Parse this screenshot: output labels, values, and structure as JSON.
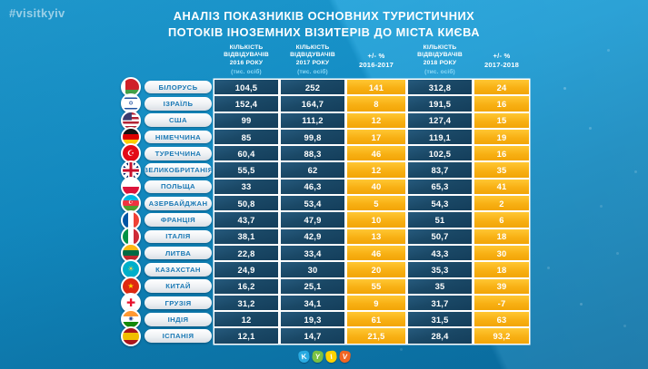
{
  "hashtag": "#visitkyiv",
  "title": {
    "line1": "АНАЛІЗ ПОКАЗНИКІВ ОСНОВНИХ ТУРИСТИЧНИХ",
    "line2": "ПОТОКІВ ІНОЗЕМНИХ ВІЗИТЕРІВ ДО МІСТА КИЄВА"
  },
  "colors": {
    "background": "#1598d2",
    "cell_navy": "#1a4866",
    "cell_yellow": "#f8b014",
    "pill_text": "#1b79b5",
    "header_sub": "#8ed9f7"
  },
  "table": {
    "columns": [
      {
        "id": "visitors-2016",
        "lines": [
          "КІЛЬКІСТЬ",
          "ВІДВІДУВАЧІВ",
          "2016 РОКУ"
        ],
        "sub": "(тис. осіб)",
        "style": "navy"
      },
      {
        "id": "visitors-2017",
        "lines": [
          "КІЛЬКІСТЬ",
          "ВІДВІДУВАЧІВ",
          "2017 РОКУ"
        ],
        "sub": "(тис. осіб)",
        "style": "navy"
      },
      {
        "id": "pct-2016-2017",
        "lines": [
          "+/- %",
          "2016-2017"
        ],
        "sub": "",
        "style": "yellow"
      },
      {
        "id": "visitors-2018",
        "lines": [
          "КІЛЬКІСТЬ",
          "ВІДВІДУВАЧІВ",
          "2018 РОКУ"
        ],
        "sub": "(тис. осіб)",
        "style": "navy"
      },
      {
        "id": "pct-2017-2018",
        "lines": [
          "+/- %",
          "2017-2018"
        ],
        "sub": "",
        "style": "yellow"
      }
    ],
    "rows": [
      {
        "country": "БІЛОРУСЬ",
        "values": [
          "104,5",
          "252",
          "141",
          "312,8",
          "24"
        ],
        "flag": {
          "name": "belarus",
          "dir": "h",
          "stops": [
            [
              "#cf2029",
              66
            ],
            [
              "#43a047",
              100
            ]
          ],
          "bar": "#ffffff"
        }
      },
      {
        "country": "ІЗРАЇЛЬ",
        "values": [
          "152,4",
          "164,7",
          "8",
          "191,5",
          "16"
        ],
        "flag": {
          "name": "israel",
          "dir": "h",
          "stops": [
            [
              "#ffffff",
              13
            ],
            [
              "#1e50a0",
              23
            ],
            [
              "#ffffff",
              77
            ],
            [
              "#1e50a0",
              87
            ],
            [
              "#ffffff",
              100
            ]
          ],
          "emblem": "✡",
          "emblem_color": "#1e50a0",
          "emblem_size": 7
        }
      },
      {
        "country": "США",
        "values": [
          "99",
          "111,2",
          "12",
          "127,4",
          "15"
        ],
        "flag": {
          "name": "usa",
          "dir": "h",
          "stops": [
            [
              "#b22234",
              14
            ],
            [
              "#ffffff",
              28
            ],
            [
              "#b22234",
              42
            ],
            [
              "#ffffff",
              56
            ],
            [
              "#b22234",
              70
            ],
            [
              "#ffffff",
              84
            ],
            [
              "#b22234",
              100
            ]
          ],
          "canton": "#3c3b6e"
        }
      },
      {
        "country": "НІМЕЧЧИНА",
        "values": [
          "85",
          "99,8",
          "17",
          "119,1",
          "19"
        ],
        "flag": {
          "name": "germany",
          "dir": "h",
          "stops": [
            [
              "#141414",
              33
            ],
            [
              "#dd0000",
              66
            ],
            [
              "#ffcc00",
              100
            ]
          ]
        }
      },
      {
        "country": "ТУРЕЧЧИНА",
        "values": [
          "60,4",
          "88,3",
          "46",
          "102,5",
          "16"
        ],
        "flag": {
          "name": "turkey",
          "dir": "h",
          "stops": [
            [
              "#e30a17",
              100
            ]
          ],
          "emblem": "☪",
          "emblem_color": "#ffffff",
          "emblem_size": 9
        }
      },
      {
        "country": "ВЕЛИКОБРИТАНІЯ",
        "values": [
          "55,5",
          "62",
          "12",
          "83,7",
          "35"
        ],
        "flag": {
          "name": "uk",
          "uk": true
        }
      },
      {
        "country": "ПОЛЬЩА",
        "values": [
          "33",
          "46,3",
          "40",
          "65,3",
          "41"
        ],
        "flag": {
          "name": "poland",
          "dir": "h",
          "stops": [
            [
              "#ffffff",
              50
            ],
            [
              "#dc143c",
              100
            ]
          ]
        }
      },
      {
        "country": "АЗЕРБАЙДЖАН",
        "values": [
          "50,8",
          "53,4",
          "5",
          "54,3",
          "2"
        ],
        "flag": {
          "name": "azerbaijan",
          "dir": "h",
          "stops": [
            [
              "#00b5e2",
              33
            ],
            [
              "#ef3340",
              66
            ],
            [
              "#509e2f",
              100
            ]
          ],
          "emblem": "☪",
          "emblem_color": "#ffffff",
          "emblem_size": 6
        }
      },
      {
        "country": "ФРАНЦІЯ",
        "values": [
          "43,7",
          "47,9",
          "10",
          "51",
          "6"
        ],
        "flag": {
          "name": "france",
          "dir": "v",
          "stops": [
            [
              "#0055a4",
              33
            ],
            [
              "#ffffff",
              66
            ],
            [
              "#ef4135",
              100
            ]
          ]
        }
      },
      {
        "country": "ІТАЛІЯ",
        "values": [
          "38,1",
          "42,9",
          "13",
          "50,7",
          "18"
        ],
        "flag": {
          "name": "italy",
          "dir": "v",
          "stops": [
            [
              "#009246",
              33
            ],
            [
              "#ffffff",
              66
            ],
            [
              "#ce2b37",
              100
            ]
          ]
        }
      },
      {
        "country": "ЛИТВА",
        "values": [
          "22,8",
          "33,4",
          "46",
          "43,3",
          "30"
        ],
        "flag": {
          "name": "lithuania",
          "dir": "h",
          "stops": [
            [
              "#fdb913",
              33
            ],
            [
              "#006a44",
              66
            ],
            [
              "#c1272d",
              100
            ]
          ]
        }
      },
      {
        "country": "КАЗАХСТАН",
        "values": [
          "24,9",
          "30",
          "20",
          "35,3",
          "18"
        ],
        "flag": {
          "name": "kazakhstan",
          "dir": "h",
          "stops": [
            [
              "#00afca",
              100
            ]
          ],
          "emblem": "☀",
          "emblem_color": "#ffd54f",
          "emblem_size": 8
        }
      },
      {
        "country": "КИТАЙ",
        "values": [
          "16,2",
          "25,1",
          "55",
          "35",
          "39"
        ],
        "flag": {
          "name": "china",
          "dir": "h",
          "stops": [
            [
              "#de2910",
              100
            ]
          ],
          "emblem": "★",
          "emblem_color": "#ffde00",
          "emblem_size": 8
        }
      },
      {
        "country": "ГРУЗІЯ",
        "values": [
          "31,2",
          "34,1",
          "9",
          "31,7",
          "-7"
        ],
        "flag": {
          "name": "georgia",
          "dir": "h",
          "stops": [
            [
              "#ffffff",
              100
            ]
          ],
          "emblem": "✚",
          "emblem_color": "#e8112d",
          "emblem_size": 12
        }
      },
      {
        "country": "ІНДІЯ",
        "values": [
          "12",
          "19,3",
          "61",
          "31,5",
          "63"
        ],
        "flag": {
          "name": "india",
          "dir": "h",
          "stops": [
            [
              "#ff9933",
              33
            ],
            [
              "#ffffff",
              66
            ],
            [
              "#138808",
              100
            ]
          ],
          "emblem": "◉",
          "emblem_color": "#1a3c8f",
          "emblem_size": 6
        }
      },
      {
        "country": "ІСПАНІЯ",
        "values": [
          "12,1",
          "14,7",
          "21,5",
          "28,4",
          "93,2"
        ],
        "flag": {
          "name": "spain",
          "dir": "h",
          "stops": [
            [
              "#aa151b",
              28
            ],
            [
              "#f1bf00",
              72
            ],
            [
              "#aa151b",
              100
            ]
          ]
        }
      }
    ]
  },
  "logo": {
    "letters": [
      {
        "char": "K",
        "color": "#29abe2"
      },
      {
        "char": "Y",
        "color": "#7ac143"
      },
      {
        "char": "I",
        "color": "#ffd200"
      },
      {
        "char": "V",
        "color": "#f26522"
      }
    ]
  },
  "chart_data": {
    "type": "table",
    "title": "АНАЛІЗ ПОКАЗНИКІВ ОСНОВНИХ ТУРИСТИЧНИХ ПОТОКІВ ІНОЗЕМНИХ ВІЗИТЕРІВ ДО МІСТА КИЄВА",
    "columns": [
      "Країна",
      "Кількість відвідувачів 2016 року (тис. осіб)",
      "Кількість відвідувачів 2017 року (тис. осіб)",
      "+/- % 2016-2017",
      "Кількість відвідувачів 2018 року (тис. осіб)",
      "+/- % 2017-2018"
    ],
    "rows": [
      [
        "Білорусь",
        104.5,
        252,
        141,
        312.8,
        24
      ],
      [
        "Ізраїль",
        152.4,
        164.7,
        8,
        191.5,
        16
      ],
      [
        "США",
        99,
        111.2,
        12,
        127.4,
        15
      ],
      [
        "Німеччина",
        85,
        99.8,
        17,
        119.1,
        19
      ],
      [
        "Туреччина",
        60.4,
        88.3,
        46,
        102.5,
        16
      ],
      [
        "Великобританія",
        55.5,
        62,
        12,
        83.7,
        35
      ],
      [
        "Польща",
        33,
        46.3,
        40,
        65.3,
        41
      ],
      [
        "Азербайджан",
        50.8,
        53.4,
        5,
        54.3,
        2
      ],
      [
        "Франція",
        43.7,
        47.9,
        10,
        51,
        6
      ],
      [
        "Італія",
        38.1,
        42.9,
        13,
        50.7,
        18
      ],
      [
        "Литва",
        22.8,
        33.4,
        46,
        43.3,
        30
      ],
      [
        "Казахстан",
        24.9,
        30,
        20,
        35.3,
        18
      ],
      [
        "Китай",
        16.2,
        25.1,
        55,
        35,
        39
      ],
      [
        "Грузія",
        31.2,
        34.1,
        9,
        31.7,
        -7
      ],
      [
        "Індія",
        12,
        19.3,
        61,
        31.5,
        63
      ],
      [
        "Іспанія",
        12.1,
        14.7,
        21.5,
        28.4,
        93.2
      ]
    ]
  }
}
